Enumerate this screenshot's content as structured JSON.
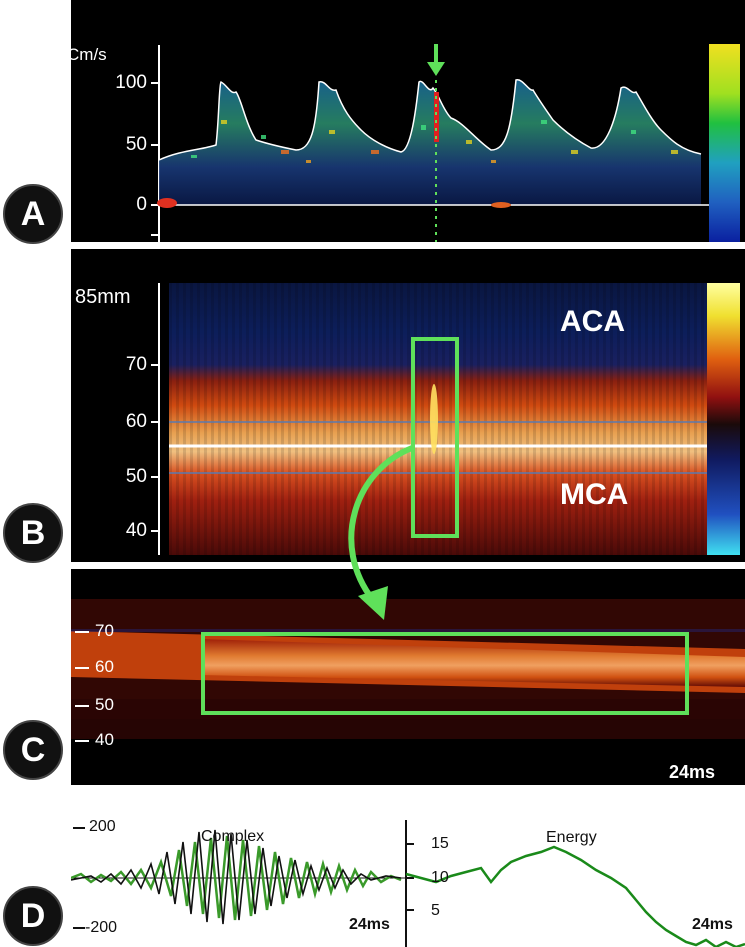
{
  "panels": {
    "a": {
      "letter": "A",
      "unit": "Cm/s",
      "ticks": [
        "100",
        "50",
        "0"
      ]
    },
    "b": {
      "letter": "B",
      "unit": "85mm",
      "ticks": [
        "70",
        "60",
        "50",
        "40"
      ],
      "region_top": "ACA",
      "region_bottom": "MCA"
    },
    "c": {
      "letter": "C",
      "ticks": [
        "70",
        "60",
        "50",
        "40"
      ],
      "duration": "24ms"
    },
    "d": {
      "letter": "D",
      "complex_title": "Complex",
      "complex_ticks": [
        "200",
        "-200"
      ],
      "complex_duration": "24ms",
      "energy_title": "Energy",
      "energy_ticks": [
        "15",
        "10",
        "5"
      ],
      "energy_duration": "24ms"
    }
  },
  "colors": {
    "highlight": "#5fe05a",
    "trace_black": "#111111",
    "trace_green": "#3a9a2a",
    "energy": "#1a8a1a"
  }
}
